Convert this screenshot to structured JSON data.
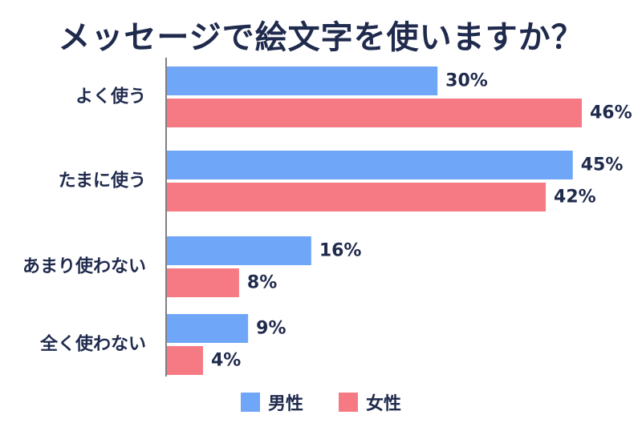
{
  "chart_data": {
    "type": "bar",
    "orientation": "horizontal",
    "title": "メッセージで絵文字を使いますか？",
    "categories": [
      "よく使う",
      "たまに使う",
      "あまり使わない",
      "全く使わない"
    ],
    "series": [
      {
        "name": "男性",
        "values": [
          30,
          45,
          16,
          9
        ],
        "color": "#6fa6f7"
      },
      {
        "name": "女性",
        "values": [
          46,
          42,
          8,
          4
        ],
        "color": "#f57a84"
      }
    ],
    "value_labels": {
      "男性": [
        "30%",
        "45%",
        "16%",
        "9%"
      ],
      "女性": [
        "46%",
        "42%",
        "8%",
        "4%"
      ]
    },
    "unit": "%",
    "xlim": [
      0,
      46
    ],
    "grid": false,
    "legend_position": "bottom-center",
    "text_color": "#1f2a4d",
    "axis_color": "#555555"
  }
}
